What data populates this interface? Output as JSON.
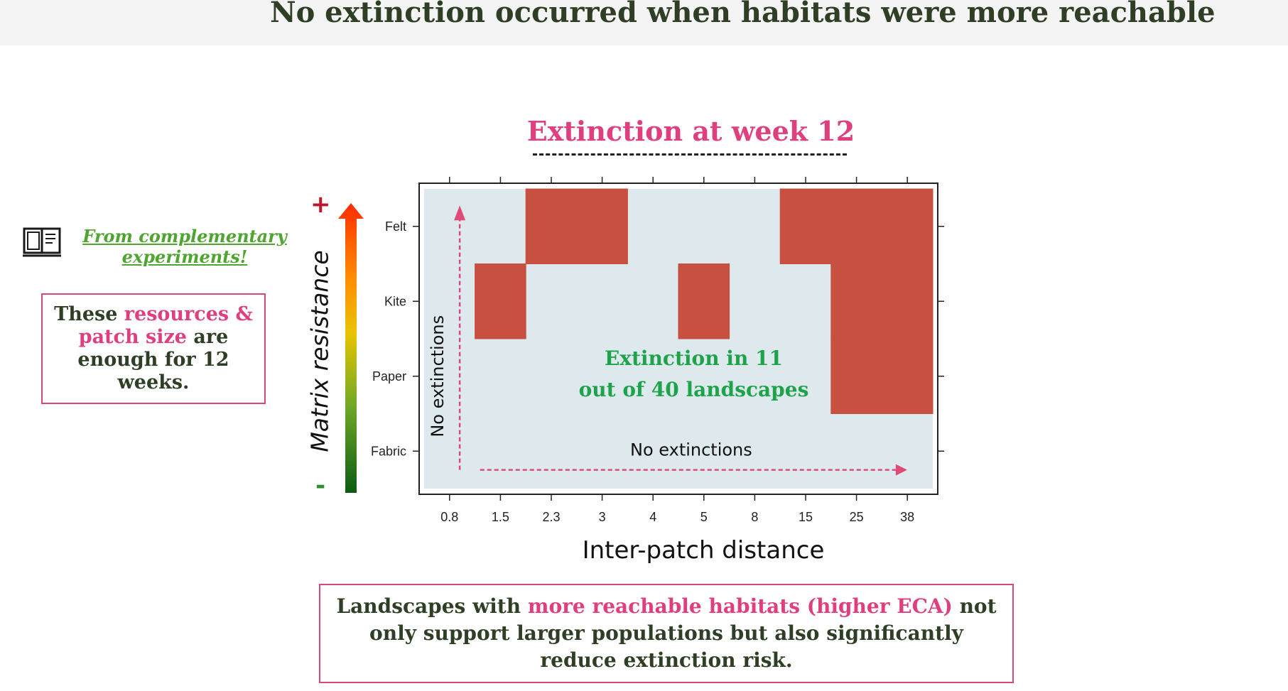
{
  "header": {
    "title": "No extinction occurred when habitats were more reachable"
  },
  "side_note": {
    "icon": "book-icon",
    "text": "From complementary experiments!"
  },
  "info_box": {
    "text_1": "These ",
    "highlight_1": "resources & patch size",
    "text_2": " are enough for 12 weeks."
  },
  "axis_extra": {
    "plus": "+",
    "minus": "-"
  },
  "chart_data": {
    "type": "heatmap",
    "title": "Extinction at week 12",
    "xlabel": "Inter-patch distance",
    "ylabel": "Matrix resistance",
    "x_categories": [
      "0.8",
      "1.5",
      "2.3",
      "3",
      "4",
      "5",
      "8",
      "15",
      "25",
      "38"
    ],
    "y_categories": [
      "Fabric",
      "Paper",
      "Kite",
      "Felt"
    ],
    "cells": [
      {
        "x": "2.3",
        "y": "Felt",
        "extinction": true
      },
      {
        "x": "3",
        "y": "Felt",
        "extinction": true
      },
      {
        "x": "15",
        "y": "Felt",
        "extinction": true
      },
      {
        "x": "25",
        "y": "Felt",
        "extinction": true
      },
      {
        "x": "38",
        "y": "Felt",
        "extinction": true
      },
      {
        "x": "1.5",
        "y": "Kite",
        "extinction": true
      },
      {
        "x": "5",
        "y": "Kite",
        "extinction": true
      },
      {
        "x": "25",
        "y": "Kite",
        "extinction": true
      },
      {
        "x": "38",
        "y": "Kite",
        "extinction": true
      },
      {
        "x": "25",
        "y": "Paper",
        "extinction": true
      },
      {
        "x": "38",
        "y": "Paper",
        "extinction": true
      }
    ],
    "colors": {
      "extinction": "#c85040",
      "background": "#dde9ed",
      "arrow": "#e14a77",
      "annotation": "#1fa34a"
    },
    "annotations": {
      "summary_line1": "Extinction in 11",
      "summary_line2": "out of 40 landscapes",
      "vertical_arrow_label": "No extinctions",
      "horizontal_arrow_label": "No extinctions"
    }
  },
  "conclusion": {
    "text_1": "Landscapes with ",
    "highlight": "more reachable habitats (higher ECA)",
    "text_2": " not only support larger populations but also significantly reduce extinction risk."
  }
}
